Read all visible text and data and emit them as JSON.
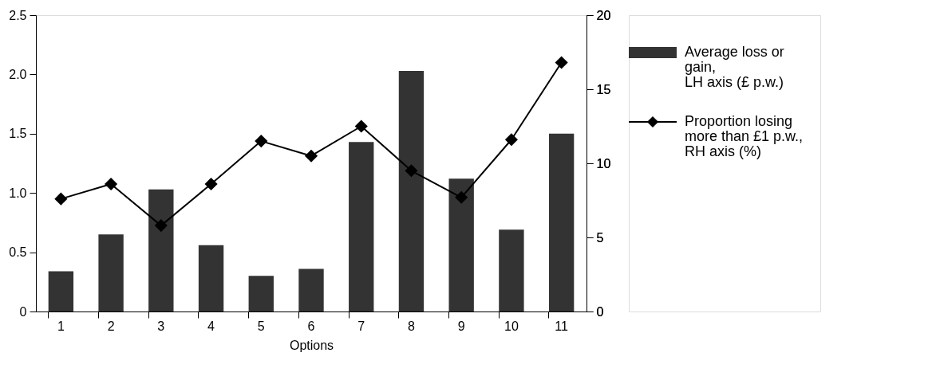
{
  "chart_data": {
    "type": "bar",
    "xlabel": "Options",
    "categories": [
      "1",
      "2",
      "3",
      "4",
      "5",
      "6",
      "7",
      "8",
      "9",
      "10",
      "11"
    ],
    "series": [
      {
        "name": "Average loss or gain, LH axis (£ p.w.)",
        "color": "#333333",
        "values": [
          0.34,
          0.65,
          1.03,
          0.56,
          0.3,
          0.36,
          1.43,
          2.03,
          1.12,
          0.69,
          1.5
        ]
      },
      {
        "name": "Proportion losing more than £1 p.w., RH axis (%)",
        "type": "line",
        "axis": "y2",
        "color": "#000000",
        "marker": "diamond",
        "values": [
          7.6,
          8.6,
          5.8,
          8.6,
          11.5,
          10.5,
          12.5,
          9.5,
          7.7,
          11.6,
          16.8
        ]
      }
    ],
    "ylim": [
      0,
      2.5
    ],
    "yticks": [
      0,
      {
        "value": 0.5,
        "label": "0.5"
      },
      {
        "value": 1,
        "label": "1.0"
      },
      {
        "value": 1.5,
        "label": "1.5"
      },
      {
        "value": 2,
        "label": "2.0"
      },
      {
        "value": 2.5,
        "label": "2.5"
      }
    ],
    "y2lim": [
      0,
      20
    ],
    "y2ticks": [
      0,
      5,
      10,
      15,
      20
    ],
    "grid": false,
    "legend": "right"
  }
}
